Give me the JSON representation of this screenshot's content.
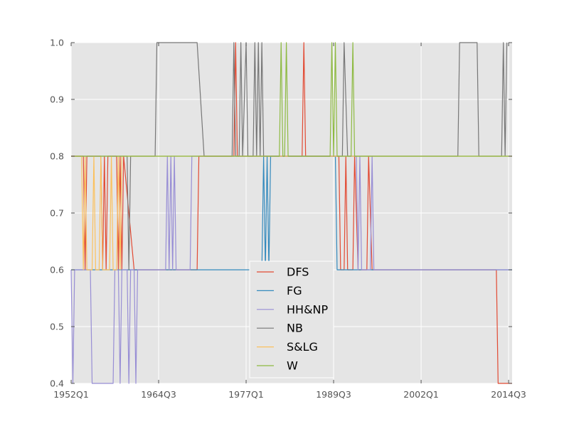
{
  "chart_data": {
    "type": "line",
    "title": "",
    "xlabel": "",
    "ylabel": "",
    "grid": true,
    "legend_position": "lower-center",
    "ylim": [
      0.4,
      1.0
    ],
    "yticks": [
      "0.4",
      "0.5",
      "0.6",
      "0.7",
      "0.8",
      "0.9",
      "1.0"
    ],
    "xlim": [
      "1952Q1",
      "2015Q1"
    ],
    "xticks": [
      "1952Q1",
      "1964Q3",
      "1977Q1",
      "1989Q3",
      "2002Q1",
      "2014Q3"
    ],
    "series": [
      {
        "name": "DFS",
        "color": "#E24A33",
        "points": [
          [
            "1952Q1",
            0.8
          ],
          [
            "1953Q4",
            0.8
          ],
          [
            "1954Q1",
            0.6
          ],
          [
            "1954Q2",
            0.8
          ],
          [
            "1956Q2",
            0.8
          ],
          [
            "1956Q3",
            0.6
          ],
          [
            "1956Q4",
            0.8
          ],
          [
            "1957Q1",
            0.6
          ],
          [
            "1957Q2",
            0.8
          ],
          [
            "1958Q3",
            0.8
          ],
          [
            "1958Q4",
            0.6
          ],
          [
            "1959Q1",
            0.8
          ],
          [
            "1959Q2",
            0.6
          ],
          [
            "1959Q3",
            0.8
          ],
          [
            "1961Q1",
            0.6
          ],
          [
            "1970Q1",
            0.6
          ],
          [
            "1970Q2",
            0.8
          ],
          [
            "1975Q2",
            0.8
          ],
          [
            "1975Q3",
            1.0
          ],
          [
            "1975Q4",
            0.8
          ],
          [
            "1985Q1",
            0.8
          ],
          [
            "1985Q2",
            1.0
          ],
          [
            "1985Q3",
            0.8
          ],
          [
            "1989Q1",
            0.8
          ],
          [
            "1990Q2",
            0.8
          ],
          [
            "1990Q3",
            0.6
          ],
          [
            "1991Q1",
            0.6
          ],
          [
            "1991Q2",
            0.8
          ],
          [
            "1991Q3",
            0.6
          ],
          [
            "1992Q2",
            0.6
          ],
          [
            "1992Q3",
            0.8
          ],
          [
            "1993Q1",
            0.6
          ],
          [
            "1994Q2",
            0.6
          ],
          [
            "1994Q3",
            0.8
          ],
          [
            "1995Q1",
            0.6
          ],
          [
            "2012Q4",
            0.6
          ],
          [
            "2013Q1",
            0.4
          ],
          [
            "2015Q1",
            0.4
          ]
        ]
      },
      {
        "name": "FG",
        "color": "#348ABD",
        "points": [
          [
            "1952Q1",
            0.6
          ],
          [
            "1979Q2",
            0.6
          ],
          [
            "1979Q3",
            0.8
          ],
          [
            "1979Q4",
            0.6
          ],
          [
            "1980Q1",
            0.8
          ],
          [
            "1980Q2",
            0.6
          ],
          [
            "1980Q3",
            0.8
          ],
          [
            "1982Q1",
            0.8
          ],
          [
            "1989Q4",
            0.8
          ],
          [
            "1990Q1",
            0.6
          ],
          [
            "2015Q1",
            0.6
          ]
        ]
      },
      {
        "name": "HH&NP",
        "color": "#988ED5",
        "points": [
          [
            "1952Q1",
            0.6
          ],
          [
            "1952Q2",
            0.4
          ],
          [
            "1952Q3",
            0.6
          ],
          [
            "1954Q4",
            0.6
          ],
          [
            "1955Q1",
            0.4
          ],
          [
            "1958Q1",
            0.4
          ],
          [
            "1958Q2",
            0.6
          ],
          [
            "1958Q4",
            0.6
          ],
          [
            "1959Q1",
            0.4
          ],
          [
            "1959Q2",
            0.6
          ],
          [
            "1960Q1",
            0.6
          ],
          [
            "1960Q2",
            0.4
          ],
          [
            "1960Q3",
            0.6
          ],
          [
            "1961Q1",
            0.6
          ],
          [
            "1961Q2",
            0.4
          ],
          [
            "1961Q3",
            0.6
          ],
          [
            "1965Q3",
            0.6
          ],
          [
            "1965Q4",
            0.8
          ],
          [
            "1966Q1",
            0.6
          ],
          [
            "1966Q2",
            0.8
          ],
          [
            "1966Q3",
            0.6
          ],
          [
            "1966Q4",
            0.8
          ],
          [
            "1967Q1",
            0.6
          ],
          [
            "1969Q1",
            0.6
          ],
          [
            "1969Q2",
            0.8
          ],
          [
            "1990Q1",
            0.8
          ],
          [
            "1992Q4",
            0.8
          ],
          [
            "1993Q1",
            0.6
          ],
          [
            "1993Q2",
            0.8
          ],
          [
            "1993Q3",
            0.6
          ],
          [
            "1994Q4",
            0.6
          ],
          [
            "1995Q1",
            0.8
          ],
          [
            "1995Q2",
            0.6
          ],
          [
            "2015Q1",
            0.6
          ]
        ]
      },
      {
        "name": "NB",
        "color": "#777777",
        "points": [
          [
            "1952Q1",
            0.8
          ],
          [
            "1960Q1",
            0.8
          ],
          [
            "1960Q2",
            0.6
          ],
          [
            "1960Q3",
            0.8
          ],
          [
            "1964Q1",
            0.8
          ],
          [
            "1964Q2",
            1.0
          ],
          [
            "1967Q1",
            1.0
          ],
          [
            "1970Q1",
            1.0
          ],
          [
            "1971Q1",
            0.8
          ],
          [
            "1975Q1",
            0.8
          ],
          [
            "1975Q2",
            1.0
          ],
          [
            "1975Q3",
            0.8
          ],
          [
            "1976Q1",
            0.8
          ],
          [
            "1976Q2",
            1.0
          ],
          [
            "1976Q3",
            0.8
          ],
          [
            "1977Q1",
            1.0
          ],
          [
            "1977Q2",
            0.8
          ],
          [
            "1978Q1",
            0.8
          ],
          [
            "1978Q2",
            1.0
          ],
          [
            "1978Q3",
            0.8
          ],
          [
            "1978Q4",
            1.0
          ],
          [
            "1979Q1",
            0.8
          ],
          [
            "1979Q2",
            1.0
          ],
          [
            "1979Q3",
            0.8
          ],
          [
            "1990Q4",
            0.8
          ],
          [
            "1991Q1",
            1.0
          ],
          [
            "1991Q3",
            0.8
          ],
          [
            "2007Q2",
            0.8
          ],
          [
            "2007Q3",
            1.0
          ],
          [
            "2010Q1",
            1.0
          ],
          [
            "2010Q2",
            0.8
          ],
          [
            "2013Q3",
            0.8
          ],
          [
            "2013Q4",
            1.0
          ],
          [
            "2014Q1",
            0.8
          ],
          [
            "2014Q2",
            1.0
          ]
        ]
      },
      {
        "name": "S&LG",
        "color": "#FBC15E",
        "points": [
          [
            "1952Q1",
            0.8
          ],
          [
            "1953Q3",
            0.8
          ],
          [
            "1953Q4",
            0.6
          ],
          [
            "1954Q1",
            0.8
          ],
          [
            "1954Q2",
            0.6
          ],
          [
            "1955Q1",
            0.6
          ],
          [
            "1955Q2",
            0.8
          ],
          [
            "1955Q3",
            0.6
          ],
          [
            "1956Q1",
            0.6
          ],
          [
            "1956Q2",
            0.8
          ],
          [
            "1956Q3",
            0.6
          ],
          [
            "1957Q3",
            0.6
          ],
          [
            "1957Q4",
            0.8
          ],
          [
            "1958Q1",
            0.6
          ],
          [
            "1958Q3",
            0.6
          ],
          [
            "1958Q4",
            0.8
          ],
          [
            "1959Q1",
            0.6
          ],
          [
            "1959Q2",
            0.8
          ],
          [
            "2015Q1",
            0.8
          ]
        ]
      },
      {
        "name": "W",
        "color": "#8EBA42",
        "points": [
          [
            "1952Q1",
            0.8
          ],
          [
            "1981Q4",
            0.8
          ],
          [
            "1982Q1",
            1.0
          ],
          [
            "1982Q2",
            0.8
          ],
          [
            "1982Q3",
            0.8
          ],
          [
            "1982Q4",
            1.0
          ],
          [
            "1983Q1",
            0.8
          ],
          [
            "1989Q1",
            0.8
          ],
          [
            "1989Q2",
            1.0
          ],
          [
            "1989Q3",
            0.8
          ],
          [
            "1989Q4",
            1.0
          ],
          [
            "1990Q1",
            0.8
          ],
          [
            "1992Q1",
            0.8
          ],
          [
            "1992Q2",
            1.0
          ],
          [
            "1992Q3",
            0.8
          ],
          [
            "2015Q1",
            0.8
          ]
        ]
      }
    ]
  }
}
